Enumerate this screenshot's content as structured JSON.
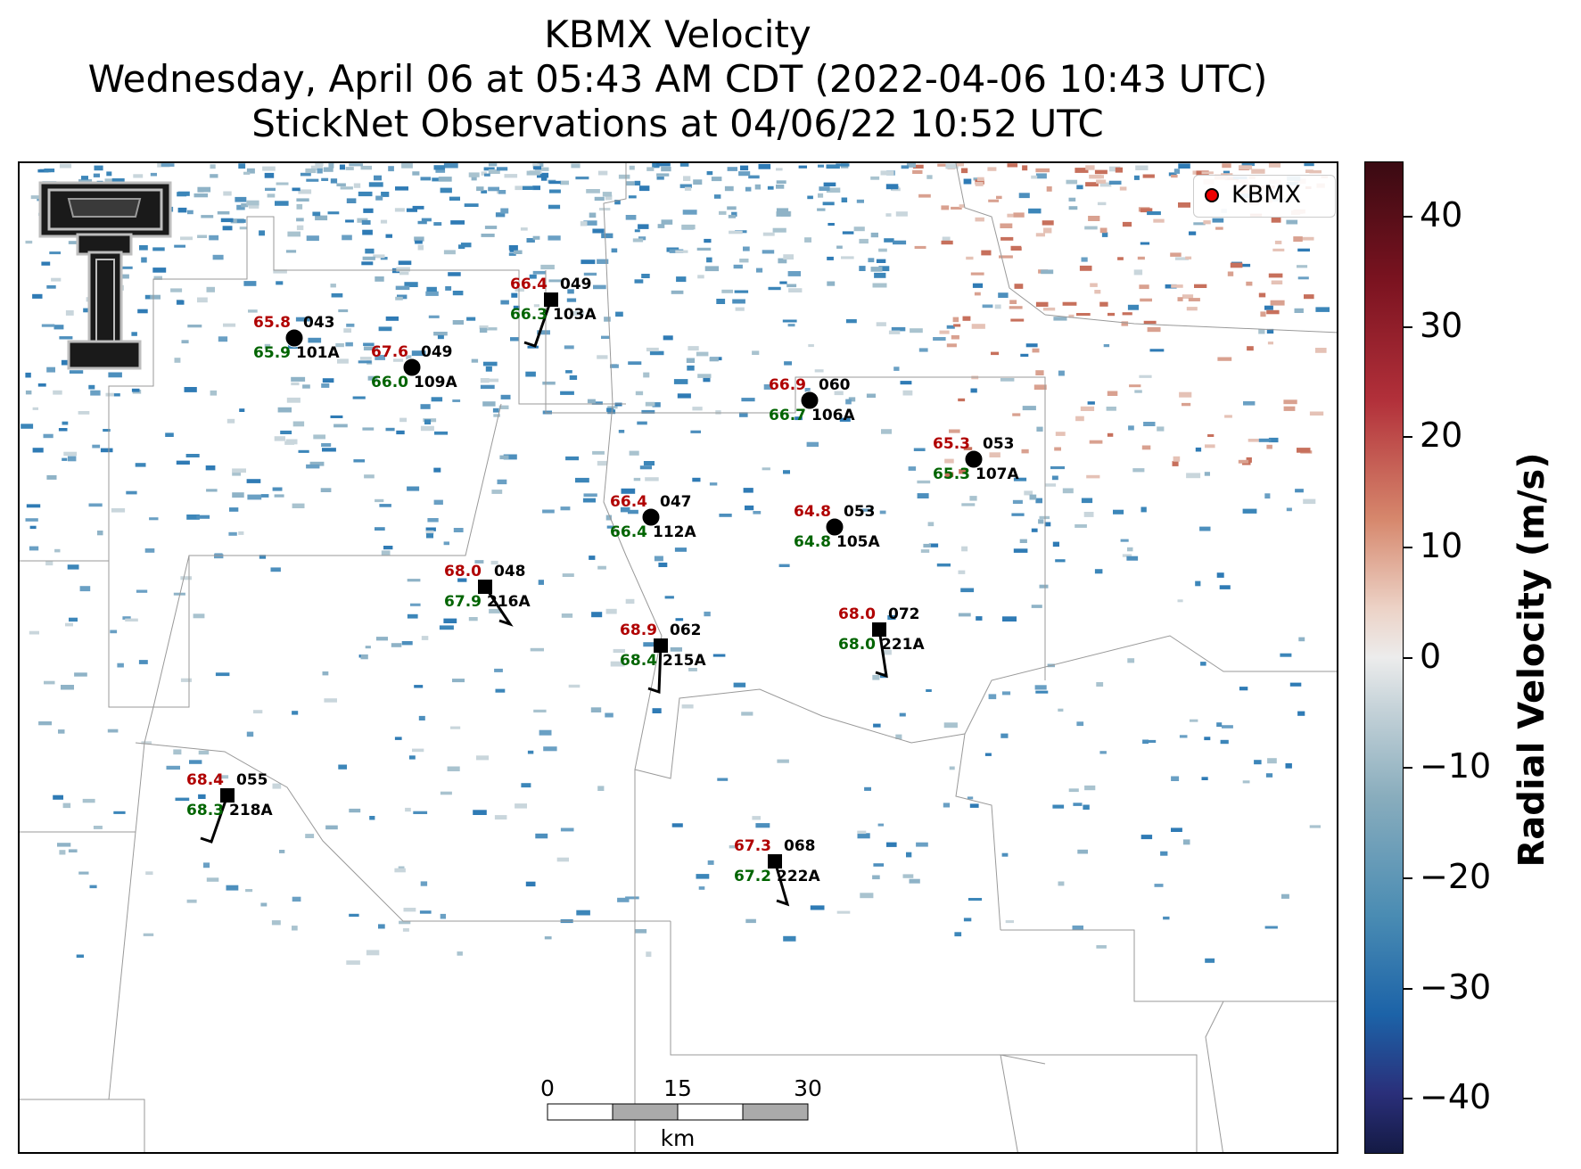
{
  "title": {
    "line1": "KBMX Velocity",
    "line2": "Wednesday, April 06 at 05:43 AM CDT (2022-04-06 10:43 UTC)",
    "line3": "StickNet Observations at 04/06/22 10:52 UTC"
  },
  "legend": {
    "label": "KBMX",
    "marker_color": "#e00000"
  },
  "logo": {
    "icon": "texas-tech-double-t-logo"
  },
  "colorbar": {
    "title": "Radial Velocity (m/s)",
    "ticks": [
      "40",
      "30",
      "20",
      "10",
      "0",
      "−10",
      "−20",
      "−30",
      "−40"
    ],
    "range": [
      -45,
      45
    ]
  },
  "scale_bar": {
    "ticks": [
      "0",
      "15",
      "30"
    ],
    "unit": "km"
  },
  "colors": {
    "temperature": "#b00000",
    "dewpoint": "#006400",
    "id": "#000000"
  },
  "stations": [
    {
      "id": "101A",
      "temp": "65.8",
      "dew": "65.9",
      "dir": "043",
      "type": "circle"
    },
    {
      "id": "109A",
      "temp": "67.6",
      "dew": "66.0",
      "dir": "049",
      "type": "circle"
    },
    {
      "id": "103A",
      "temp": "66.4",
      "dew": "66.3",
      "dir": "049",
      "type": "square"
    },
    {
      "id": "106A",
      "temp": "66.9",
      "dew": "66.7",
      "dir": "060",
      "type": "circle"
    },
    {
      "id": "107A",
      "temp": "65.3",
      "dew": "65.3",
      "dir": "053",
      "type": "circle"
    },
    {
      "id": "112A",
      "temp": "66.4",
      "dew": "66.4",
      "dir": "047",
      "type": "circle"
    },
    {
      "id": "105A",
      "temp": "64.8",
      "dew": "64.8",
      "dir": "053",
      "type": "circle"
    },
    {
      "id": "216A",
      "temp": "68.0",
      "dew": "67.9",
      "dir": "048",
      "type": "square"
    },
    {
      "id": "215A",
      "temp": "68.9",
      "dew": "68.4",
      "dir": "062",
      "type": "square"
    },
    {
      "id": "221A",
      "temp": "68.0",
      "dew": "68.0",
      "dir": "072",
      "type": "square"
    },
    {
      "id": "218A",
      "temp": "68.4",
      "dew": "68.3",
      "dir": "055",
      "type": "square"
    },
    {
      "id": "222A",
      "temp": "67.3",
      "dew": "67.2",
      "dir": "068",
      "type": "square"
    }
  ]
}
